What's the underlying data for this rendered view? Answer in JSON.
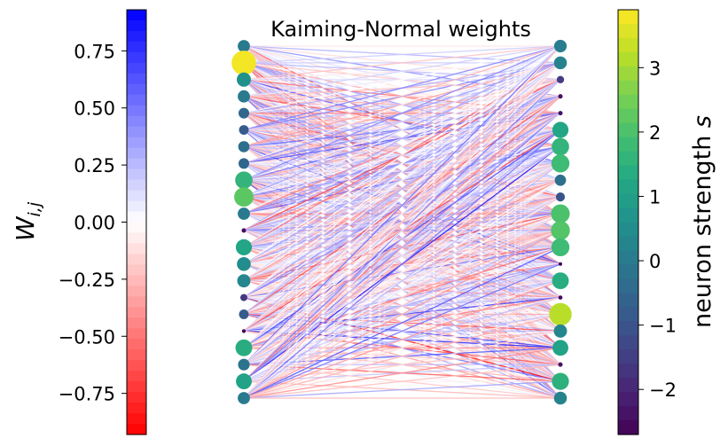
{
  "chart_data": {
    "type": "network",
    "title": "Kaiming-Normal weights",
    "left_colorbar": {
      "label": "W_{i,j}",
      "label_main": "W",
      "label_sub": "i,j",
      "range": [
        -0.93,
        0.93
      ],
      "ticks": [
        0.75,
        0.5,
        0.25,
        0.0,
        -0.25,
        -0.5,
        -0.75
      ],
      "tick_labels": [
        "0.75",
        "0.50",
        "0.25",
        "0.00",
        "−0.25",
        "−0.50",
        "−0.75"
      ],
      "colormap": "bwr_r (red negative, white zero, blue positive)",
      "levels": 40
    },
    "right_colorbar": {
      "label": "neuron strength s",
      "label_main": "neuron strength ",
      "label_var": "s",
      "range": [
        -2.7,
        3.9
      ],
      "ticks": [
        3,
        2,
        1,
        0,
        -1,
        -2
      ],
      "tick_labels": [
        "3",
        "2",
        "1",
        "0",
        "−1",
        "−2"
      ],
      "colormap": "viridis",
      "levels": 30
    },
    "left_layer": {
      "count": 22,
      "strengths": [
        0.0,
        3.8,
        0.6,
        0.0,
        -0.5,
        -0.8,
        -0.3,
        -0.5,
        1.6,
        2.2,
        0.0,
        -2.4,
        1.2,
        0.5,
        0.3,
        -1.6,
        -0.8,
        -2.6,
        1.4,
        -0.2,
        1.1,
        0.0
      ]
    },
    "right_layer": {
      "count": 22,
      "strengths": [
        0.1,
        0.2,
        -1.5,
        -2.4,
        -2.4,
        1.2,
        1.6,
        1.8,
        -0.3,
        -1.0,
        2.0,
        2.1,
        1.8,
        -2.7,
        1.4,
        -2.5,
        3.2,
        0.3,
        1.1,
        -2.4,
        1.5,
        0.2
      ]
    },
    "connections": "fully connected 22 x 22 weight matrix",
    "grid": false
  }
}
